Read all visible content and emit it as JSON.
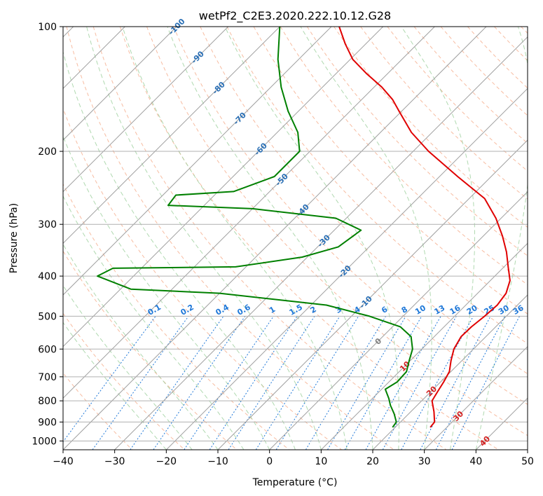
{
  "chart_data": {
    "type": "line",
    "chart_kind": "skew-T log-P diagram",
    "title": "wetPf2_C2E3.2020.222.10.12.G28",
    "xlabel": "Temperature (°C)",
    "ylabel": "Pressure (hPa)",
    "xlim": [
      -40,
      50
    ],
    "ylim": [
      1050,
      100
    ],
    "y_scale": "log",
    "x_ticks": [
      -40,
      -30,
      -20,
      -10,
      0,
      10,
      20,
      30,
      40,
      50
    ],
    "y_ticks": [
      100,
      200,
      300,
      400,
      500,
      600,
      700,
      800,
      900,
      1000
    ],
    "x_tick_labels": [
      "−40",
      "−30",
      "−20",
      "−10",
      "0",
      "10",
      "20",
      "30",
      "40",
      "50"
    ],
    "y_tick_labels": [
      "100",
      "200",
      "300",
      "400",
      "500",
      "600",
      "700",
      "800",
      "900",
      "1000"
    ],
    "grid": true,
    "colors": {
      "temperature": "#e00000",
      "dewpoint": "#008000",
      "isotherm": "#a0a0a0",
      "dry_adiabat": "#f4a582",
      "moist_adiabat": "#9ccf9c",
      "mixing_ratio": "#1f78d8",
      "isotherm_label": "#2a6fb5",
      "label_red": "#d32020"
    },
    "isotherm_labels": [
      "-100",
      "-90",
      "-80",
      "-70",
      "-60",
      "-50",
      "-40",
      "-30",
      "-20",
      "-10",
      "0",
      "10",
      "20",
      "30",
      "40"
    ],
    "mixing_ratio_labels": [
      "0.1",
      "0.2",
      "0.4",
      "0.6",
      "1",
      "1.5",
      "2",
      "3",
      "4",
      "6",
      "8",
      "10",
      "13",
      "16",
      "20",
      "25",
      "30",
      "36"
    ],
    "series": [
      {
        "name": "Temperature",
        "points": [
          [
            927,
            26.8
          ],
          [
            900,
            26.6
          ],
          [
            850,
            24.5
          ],
          [
            800,
            22.0
          ],
          [
            760,
            21.3
          ],
          [
            720,
            20.6
          ],
          [
            680,
            19.7
          ],
          [
            640,
            17.9
          ],
          [
            600,
            16.2
          ],
          [
            560,
            15.2
          ],
          [
            530,
            15.3
          ],
          [
            500,
            15.8
          ],
          [
            470,
            16.1
          ],
          [
            440,
            15.5
          ],
          [
            410,
            13.8
          ],
          [
            380,
            10.8
          ],
          [
            350,
            7.6
          ],
          [
            320,
            3.7
          ],
          [
            290,
            -1.0
          ],
          [
            260,
            -7.0
          ],
          [
            230,
            -16.5
          ],
          [
            200,
            -27.0
          ],
          [
            180,
            -34.0
          ],
          [
            160,
            -40.5
          ],
          [
            150,
            -44.0
          ],
          [
            140,
            -48.5
          ],
          [
            130,
            -54.0
          ],
          [
            120,
            -59.5
          ],
          [
            110,
            -64.0
          ],
          [
            100,
            -68.5
          ]
        ]
      },
      {
        "name": "Dewpoint",
        "points": [
          [
            927,
            19.5
          ],
          [
            900,
            19.2
          ],
          [
            860,
            17.2
          ],
          [
            820,
            14.8
          ],
          [
            790,
            13.2
          ],
          [
            750,
            10.7
          ],
          [
            720,
            11.6
          ],
          [
            680,
            11.4
          ],
          [
            640,
            9.8
          ],
          [
            600,
            8.2
          ],
          [
            560,
            5.5
          ],
          [
            530,
            1.5
          ],
          [
            500,
            -6.5
          ],
          [
            470,
            -17.0
          ],
          [
            440,
            -40.0
          ],
          [
            430,
            -58.0
          ],
          [
            400,
            -67.0
          ],
          [
            383,
            -65.5
          ],
          [
            380,
            -42.0
          ],
          [
            360,
            -31.0
          ],
          [
            340,
            -26.0
          ],
          [
            310,
            -24.8
          ],
          [
            290,
            -32.0
          ],
          [
            275,
            -50.0
          ],
          [
            270,
            -67.0
          ],
          [
            255,
            -67.5
          ],
          [
            250,
            -57.0
          ],
          [
            230,
            -52.0
          ],
          [
            200,
            -52.0
          ],
          [
            180,
            -56.0
          ],
          [
            160,
            -62.0
          ],
          [
            140,
            -68.0
          ],
          [
            120,
            -74.0
          ],
          [
            100,
            -80.0
          ]
        ]
      }
    ]
  }
}
